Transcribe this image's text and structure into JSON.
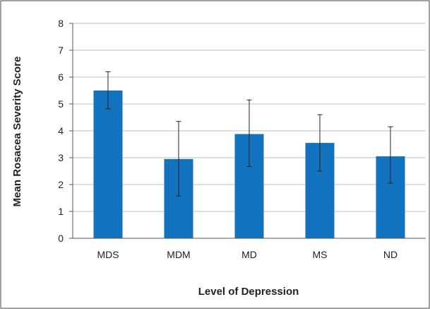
{
  "chart_data": {
    "type": "bar",
    "title": "",
    "xlabel": "Level of Depression",
    "ylabel": "Mean Rosacea Severity Score",
    "categories": [
      "MDS",
      "MDM",
      "MD",
      "MS",
      "ND"
    ],
    "values": [
      5.5,
      2.95,
      3.88,
      3.55,
      3.05
    ],
    "error_low": [
      4.82,
      1.58,
      2.67,
      2.5,
      2.05
    ],
    "error_high": [
      6.2,
      4.35,
      5.15,
      4.6,
      4.15
    ],
    "ylim": [
      0,
      8
    ],
    "yticks": [
      "0",
      "1",
      "2",
      "3",
      "4",
      "5",
      "6",
      "7",
      "8"
    ],
    "grid": true,
    "legend": "none",
    "bar_color": "#1372bd",
    "grid_color": "#bdbdbd",
    "axis_color": "#555555",
    "frame_color": "#444444"
  }
}
